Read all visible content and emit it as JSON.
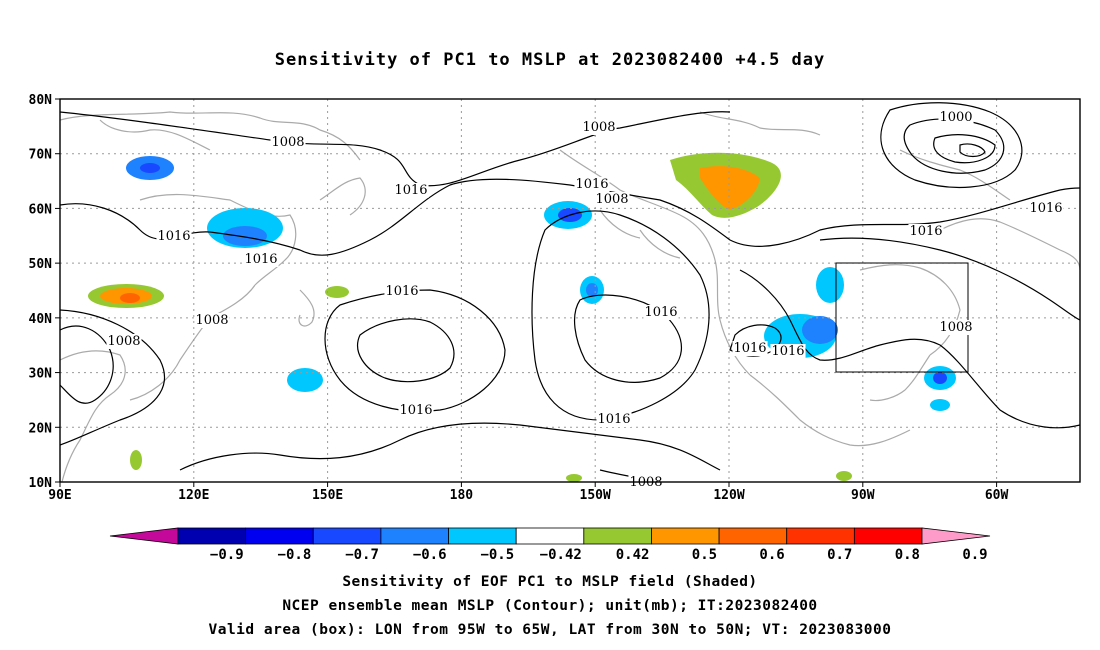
{
  "title": "Sensitivity of PC1 to MSLP at 2023082400 +4.5 day",
  "map": {
    "lat_ticks": [
      "80N",
      "70N",
      "60N",
      "50N",
      "40N",
      "30N",
      "20N",
      "10N"
    ],
    "lon_ticks": [
      "90E",
      "120E",
      "150E",
      "180",
      "150W",
      "120W",
      "90W",
      "60W"
    ],
    "contour_labels": [
      "1008",
      "1000",
      "1008",
      "1016",
      "1016",
      "1008",
      "1016",
      "1016",
      "1016",
      "1016",
      "1008",
      "1008",
      "1016",
      "1016",
      "1008",
      "1016",
      "1016",
      "1016",
      "1016",
      "1008"
    ]
  },
  "colorbar": {
    "labels": [
      "-0.9",
      "-0.8",
      "-0.7",
      "-0.6",
      "-0.5",
      "-0.42",
      "0.42",
      "0.5",
      "0.6",
      "0.7",
      "0.8",
      "0.9"
    ],
    "colors": [
      "#c4089a",
      "#0000b0",
      "#0000f0",
      "#1848ff",
      "#1e82ff",
      "#00c8ff",
      "#ffffff",
      "#96c832",
      "#ff9600",
      "#ff6400",
      "#ff3200",
      "#ff0000",
      "#ff9bc8"
    ]
  },
  "captions": {
    "line1": "Sensitivity of EOF PC1 to MSLP field (Shaded)",
    "line2": "NCEP ensemble mean MSLP (Contour); unit(mb); IT:2023082400",
    "line3": "Valid area (box): LON from 95W to 65W, LAT from 30N to 50N; VT: 2023083000"
  }
}
